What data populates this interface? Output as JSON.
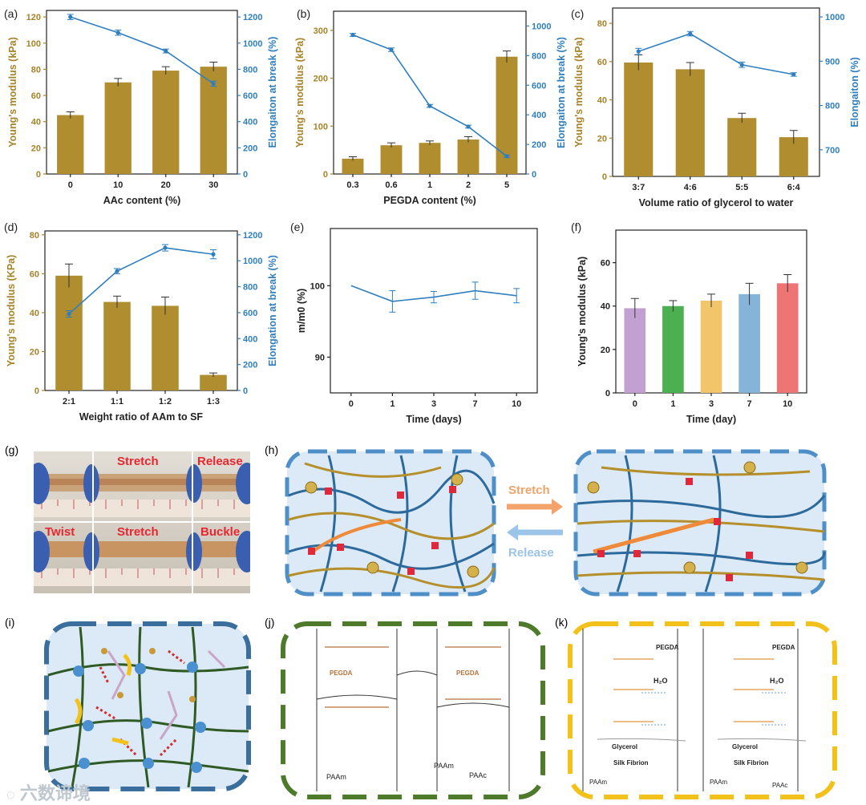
{
  "colors": {
    "bar_gold": "#b08d2e",
    "line_blue": "#2f7fbf",
    "axis_gold": "#a78328",
    "axis_blue": "#2f7fbf",
    "panel_fill": "#dce9f6",
    "frame_blue": "#4f8fc8",
    "frame_green": "#4e7a2c",
    "frame_yellow": "#f2c21b",
    "chain_blue": "#2c6a9c",
    "chain_gold": "#b58f2b",
    "chain_orange": "#ef8a3a",
    "crosslink_red": "#e0283a",
    "arrow_orange": "#f2a36a",
    "arrow_blue": "#9cc3e8",
    "label_red": "#e8262f"
  },
  "chart_data": [
    {
      "id": "a",
      "panel_label": "(a)",
      "type": "bar+line",
      "categories": [
        "0",
        "10",
        "20",
        "30"
      ],
      "xlabel": "AAc content (%)",
      "ylabel": "Young's modulus (kPa)",
      "y2label": "Elongaiton at break (%)",
      "ylim": [
        0,
        125
      ],
      "yticks": [
        0,
        20,
        40,
        60,
        80,
        100,
        120
      ],
      "y2lim": [
        0,
        1250
      ],
      "y2ticks": [
        0,
        200,
        400,
        600,
        800,
        1000,
        1200
      ],
      "bars": [
        45,
        70,
        79,
        82
      ],
      "bar_err": [
        2.5,
        3,
        3,
        3.5
      ],
      "line": [
        1200,
        1080,
        940,
        690
      ],
      "line_err": [
        20,
        20,
        15,
        20
      ]
    },
    {
      "id": "b",
      "panel_label": "(b)",
      "type": "bar+line",
      "categories": [
        "0.3",
        "0.6",
        "1",
        "2",
        "5"
      ],
      "xlabel": "PEGDA content (%)",
      "ylabel": "Young's modulus (kPa)",
      "y2label": "Elongaiton at break (%)",
      "ylim": [
        0,
        340
      ],
      "yticks": [
        0,
        100,
        200,
        300
      ],
      "y2lim": [
        0,
        1100
      ],
      "y2ticks": [
        0,
        200,
        400,
        600,
        800,
        1000
      ],
      "bars": [
        32,
        60,
        65,
        72,
        245
      ],
      "bar_err": [
        4,
        5,
        4,
        6,
        12
      ],
      "line": [
        940,
        840,
        460,
        320,
        120
      ],
      "line_err": [
        10,
        12,
        10,
        10,
        8
      ]
    },
    {
      "id": "c",
      "panel_label": "(c)",
      "type": "bar+line",
      "categories": [
        "3:7",
        "4:6",
        "5:5",
        "6:4"
      ],
      "xlabel": "Volume ratio of glycerol to water",
      "ylabel": "Young's modulus (kPa)",
      "y2label": "Elongaiton (%)",
      "ylim": [
        0,
        88
      ],
      "yticks": [
        0,
        20,
        40,
        60,
        80
      ],
      "y2lim": [
        640,
        1020
      ],
      "y2ticks": [
        700,
        800,
        900,
        1000
      ],
      "bars": [
        59.5,
        56,
        30.5,
        20.5
      ],
      "bar_err": [
        4,
        3.5,
        2.5,
        3.5
      ],
      "line": [
        922,
        962,
        892,
        870
      ],
      "line_err": [
        7,
        5,
        6,
        4
      ]
    },
    {
      "id": "d",
      "panel_label": "(d)",
      "type": "bar+line",
      "categories": [
        "2:1",
        "1:1",
        "1:2",
        "1:3"
      ],
      "xlabel": "Weight ratio of AAm to SF",
      "ylabel": "Young's modulus (KPa)",
      "y2label": "Elongation at break (%)",
      "ylim": [
        0,
        82
      ],
      "yticks": [
        0,
        20,
        40,
        60,
        80
      ],
      "y2lim": [
        0,
        1230
      ],
      "y2ticks": [
        0,
        200,
        400,
        600,
        800,
        1000,
        1200
      ],
      "bars": [
        59,
        45.5,
        43.5,
        8
      ],
      "bar_err": [
        6,
        3,
        4.5,
        1
      ],
      "line": [
        590,
        920,
        1100,
        1050
      ],
      "line_err": [
        25,
        20,
        25,
        35
      ]
    },
    {
      "id": "e",
      "panel_label": "(e)",
      "type": "line",
      "categories": [
        "0",
        "1",
        "3",
        "7",
        "10"
      ],
      "xlabel": "Time (days)",
      "ylabel": "m/m0 (%)",
      "ylim": [
        85,
        108
      ],
      "yticks": [
        90,
        100
      ],
      "line": [
        100,
        97.8,
        98.4,
        99.3,
        98.6
      ],
      "line_err": [
        0,
        1.5,
        0.8,
        1.2,
        1.0
      ]
    },
    {
      "id": "f",
      "panel_label": "(f)",
      "type": "bar",
      "categories": [
        "0",
        "1",
        "3",
        "7",
        "10"
      ],
      "xlabel": "Time (day)",
      "ylabel": "Young's modulus (kPa)",
      "ylim": [
        0,
        75
      ],
      "yticks": [
        0,
        20,
        40,
        60
      ],
      "bars": [
        39,
        40,
        42.5,
        45.5,
        50.5
      ],
      "bar_err": [
        4.5,
        2.5,
        3,
        5,
        4
      ],
      "bar_colors": [
        "#c2a0d1",
        "#4caf50",
        "#f2c56a",
        "#86b3d8",
        "#ef7575"
      ]
    }
  ],
  "photos": {
    "panel_label": "(g)",
    "labels": [
      "Stretch",
      "Release",
      "Twist",
      "Stretch",
      "Buckle"
    ]
  },
  "network_h": {
    "panel_label": "(h)",
    "stretch": "Stretch",
    "release": "Release"
  },
  "network_i": {
    "panel_label": "(i)"
  },
  "chem_j": {
    "panel_label": "(j)",
    "pegda1": "PEGDA",
    "pegda2": "PEGDA",
    "paam1": "PAAm",
    "paam2": "PAAm",
    "paac": "PAAc"
  },
  "chem_k": {
    "panel_label": "(k)",
    "pegda1": "PEGDA",
    "pegda2": "PEGDA",
    "h2o1": "H₂O",
    "h2o2": "H₂O",
    "glycerol1": "Glycerol",
    "glycerol2": "Glycerol",
    "silk1": "Silk Fibrion",
    "silk2": "Silk Fibrion",
    "paam1": "PAAm",
    "paam2": "PAAm",
    "paac": "PAAc"
  },
  "watermark": {
    "text": "六数谛境"
  }
}
